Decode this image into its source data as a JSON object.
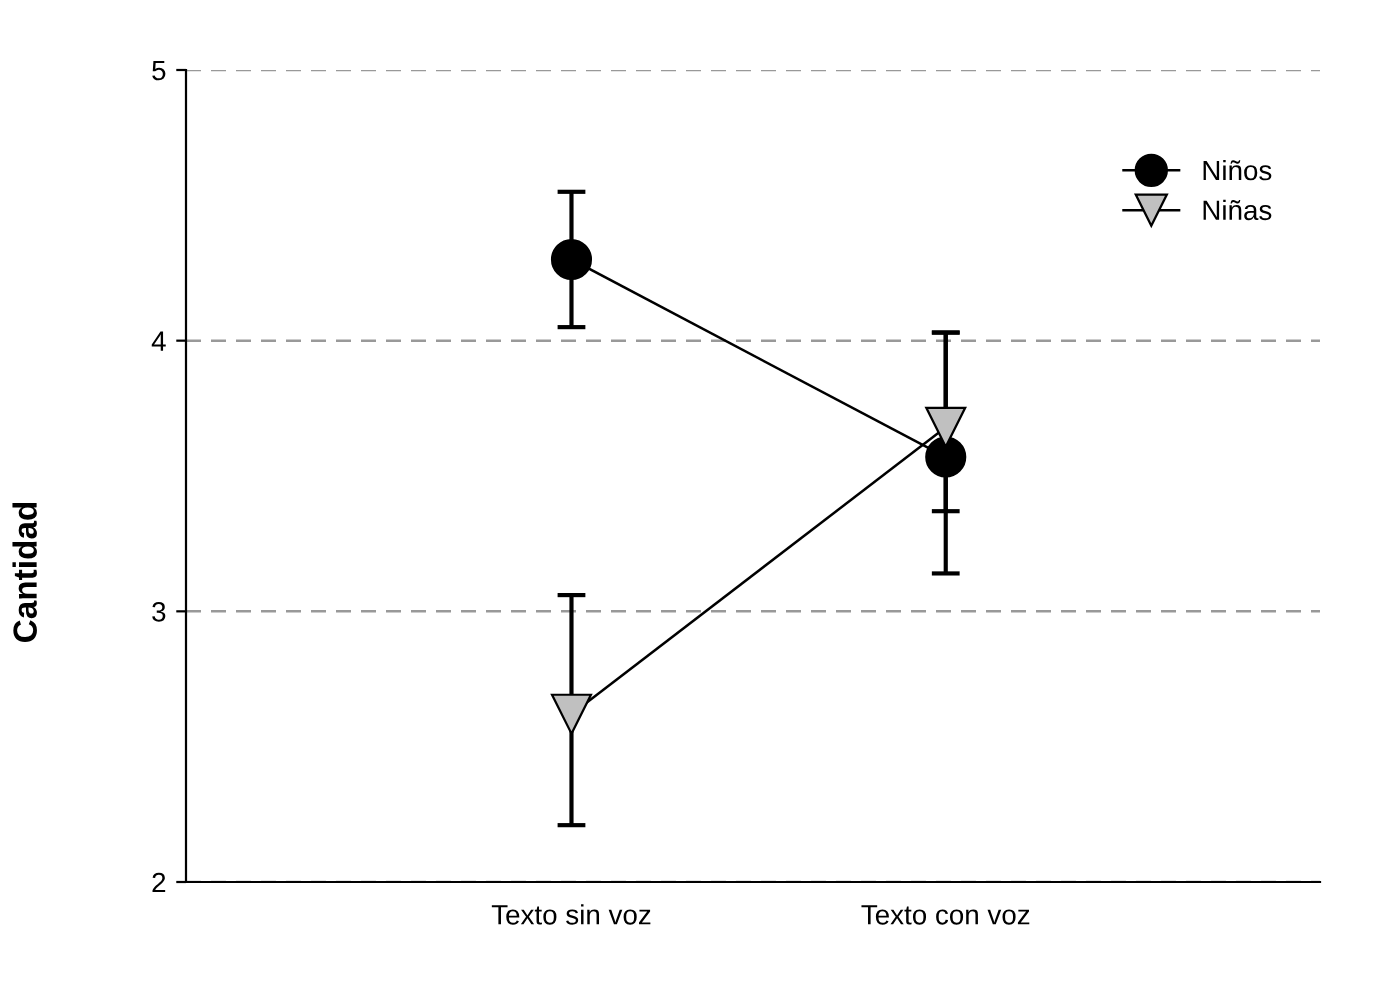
{
  "chart_data": {
    "type": "line",
    "ylabel": "Cantidad",
    "categories": [
      "Texto sin voz",
      "Texto con voz"
    ],
    "series": [
      {
        "name": "Niños",
        "color": "#000000",
        "marker": "circle",
        "values": [
          4.3,
          3.57
        ],
        "errors": [
          [
            4.05,
            4.55
          ],
          [
            3.14,
            4.03
          ]
        ]
      },
      {
        "name": "Niñas",
        "color": "#c0c0c0",
        "marker": "triangle",
        "values": [
          2.62,
          3.68
        ],
        "errors": [
          [
            2.21,
            3.06
          ],
          [
            3.37,
            4.03
          ]
        ]
      }
    ],
    "ylim": [
      2,
      5
    ],
    "yticks": [
      2,
      3,
      4,
      5
    ],
    "grid": "y",
    "legend": "top right",
    "line_style": "solid"
  }
}
